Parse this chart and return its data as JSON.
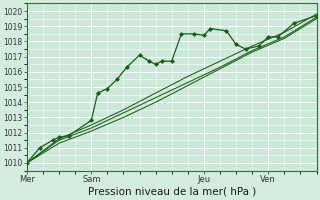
{
  "bg_color": "#d4ece0",
  "plot_bg_color": "#cce8d8",
  "grid_color": "#ffffff",
  "grid_color_minor": "#ddf0e6",
  "line_color": "#1a5c1a",
  "marker_color": "#1a5c1a",
  "xlabel": "Pression niveau de la mer( hPa )",
  "xlabel_fontsize": 7.5,
  "ylim": [
    1009.5,
    1020.5
  ],
  "yticks": [
    1010,
    1011,
    1012,
    1013,
    1014,
    1015,
    1016,
    1017,
    1018,
    1019,
    1020
  ],
  "ytick_fontsize": 5.5,
  "xtick_labels": [
    "Mer",
    "Sam",
    "Jeu",
    "Ven"
  ],
  "xtick_positions": [
    0.0,
    2.0,
    5.5,
    7.5
  ],
  "xlim": [
    0,
    9.0
  ],
  "xtick_fontsize": 6.0,
  "series1": [
    [
      0.0,
      1010.0
    ],
    [
      0.4,
      1011.0
    ],
    [
      0.8,
      1011.5
    ],
    [
      1.0,
      1011.7
    ],
    [
      1.3,
      1011.8
    ],
    [
      2.0,
      1012.8
    ],
    [
      2.2,
      1014.6
    ],
    [
      2.5,
      1014.9
    ],
    [
      2.8,
      1015.5
    ],
    [
      3.1,
      1016.3
    ],
    [
      3.5,
      1017.1
    ],
    [
      3.8,
      1016.7
    ],
    [
      4.0,
      1016.5
    ],
    [
      4.2,
      1016.7
    ],
    [
      4.5,
      1016.7
    ],
    [
      4.8,
      1018.5
    ],
    [
      5.2,
      1018.5
    ],
    [
      5.5,
      1018.4
    ],
    [
      5.7,
      1018.85
    ],
    [
      6.2,
      1018.7
    ],
    [
      6.5,
      1017.8
    ],
    [
      6.8,
      1017.5
    ],
    [
      7.2,
      1017.7
    ],
    [
      7.5,
      1018.3
    ],
    [
      7.8,
      1018.3
    ],
    [
      8.3,
      1019.2
    ],
    [
      9.0,
      1019.7
    ]
  ],
  "series2": [
    [
      0.0,
      1010.0
    ],
    [
      1.0,
      1011.5
    ],
    [
      2.0,
      1012.3
    ],
    [
      3.0,
      1013.3
    ],
    [
      4.0,
      1014.3
    ],
    [
      5.0,
      1015.3
    ],
    [
      6.0,
      1016.3
    ],
    [
      7.0,
      1017.4
    ],
    [
      8.0,
      1018.3
    ],
    [
      9.0,
      1019.6
    ]
  ],
  "series3": [
    [
      0.0,
      1010.0
    ],
    [
      1.0,
      1011.6
    ],
    [
      2.0,
      1012.5
    ],
    [
      3.0,
      1013.5
    ],
    [
      4.0,
      1014.6
    ],
    [
      5.0,
      1015.7
    ],
    [
      6.0,
      1016.7
    ],
    [
      7.0,
      1017.7
    ],
    [
      8.0,
      1018.6
    ],
    [
      9.0,
      1019.8
    ]
  ],
  "series4": [
    [
      0.0,
      1010.0
    ],
    [
      1.0,
      1011.3
    ],
    [
      2.0,
      1012.1
    ],
    [
      3.0,
      1013.0
    ],
    [
      4.0,
      1014.0
    ],
    [
      5.0,
      1015.1
    ],
    [
      6.0,
      1016.2
    ],
    [
      7.0,
      1017.3
    ],
    [
      8.0,
      1018.2
    ],
    [
      9.0,
      1019.5
    ]
  ]
}
